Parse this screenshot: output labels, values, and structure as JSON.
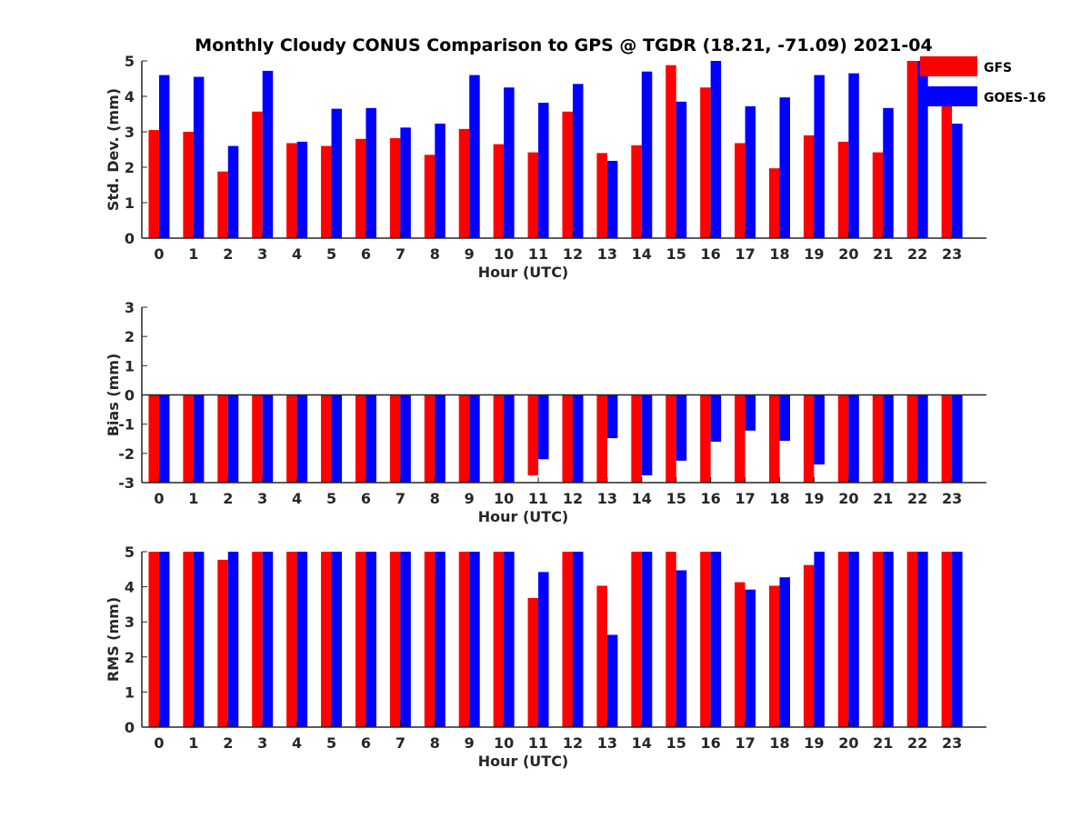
{
  "figure": {
    "title": "Monthly Cloudy CONUS Comparison to GPS @ TGDR (18.21, -71.09) 2021-04"
  },
  "legend": {
    "placement": "top-right",
    "items": [
      {
        "name": "GFS",
        "color": "#ff0000"
      },
      {
        "name": "GOES-16",
        "color": "#0000ff"
      }
    ]
  },
  "chart_data": [
    {
      "type": "bar",
      "ylabel": "Std. Dev. (mm)",
      "xlabel": "Hour (UTC)",
      "categories": [
        "0",
        "1",
        "2",
        "3",
        "4",
        "5",
        "6",
        "7",
        "8",
        "9",
        "10",
        "11",
        "12",
        "13",
        "14",
        "15",
        "16",
        "17",
        "18",
        "19",
        "20",
        "21",
        "22",
        "23"
      ],
      "ylim": [
        0,
        5
      ],
      "yticks": [
        "0",
        "1",
        "2",
        "3",
        "4",
        "5"
      ],
      "series": [
        {
          "name": "GFS",
          "color": "#ff0000",
          "values": [
            3.05,
            3.0,
            1.88,
            3.57,
            2.68,
            2.6,
            2.8,
            2.82,
            2.35,
            3.08,
            2.65,
            2.42,
            3.57,
            2.4,
            2.62,
            4.88,
            4.25,
            2.68,
            1.97,
            2.9,
            2.72,
            2.42,
            5.0,
            4.0
          ]
        },
        {
          "name": "GOES-16",
          "color": "#0000ff",
          "values": [
            4.6,
            4.55,
            2.6,
            4.72,
            2.72,
            3.65,
            3.67,
            3.12,
            3.23,
            4.6,
            4.25,
            3.82,
            4.35,
            2.18,
            4.7,
            3.85,
            5.0,
            3.72,
            3.97,
            4.6,
            4.65,
            3.67,
            5.0,
            3.23
          ]
        }
      ]
    },
    {
      "type": "bar",
      "ylabel": "Bias (mm)",
      "xlabel": "Hour (UTC)",
      "categories": [
        "0",
        "1",
        "2",
        "3",
        "4",
        "5",
        "6",
        "7",
        "8",
        "9",
        "10",
        "11",
        "12",
        "13",
        "14",
        "15",
        "16",
        "17",
        "18",
        "19",
        "20",
        "21",
        "22",
        "23"
      ],
      "ylim": [
        -3,
        3
      ],
      "yticks": [
        "-3",
        "-2",
        "-1",
        "0",
        "1",
        "2",
        "3"
      ],
      "series": [
        {
          "name": "GFS",
          "color": "#ff0000",
          "values": [
            -3,
            -3,
            -3,
            -3,
            -3,
            -3,
            -3,
            -3,
            -3,
            -3,
            -3,
            -2.75,
            -3,
            -3,
            -3,
            -3,
            -3,
            -3,
            -3,
            -3,
            -3,
            -3,
            -3,
            -3
          ]
        },
        {
          "name": "GOES-16",
          "color": "#0000ff",
          "values": [
            -3,
            -3,
            -3,
            -3,
            -3,
            -3,
            -3,
            -3,
            -3,
            -3,
            -3,
            -2.2,
            -3,
            -1.48,
            -2.75,
            -2.25,
            -1.6,
            -1.22,
            -1.57,
            -2.38,
            -3,
            -3,
            -3,
            -3
          ]
        }
      ]
    },
    {
      "type": "bar",
      "ylabel": "RMS (mm)",
      "xlabel": "Hour (UTC)",
      "categories": [
        "0",
        "1",
        "2",
        "3",
        "4",
        "5",
        "6",
        "7",
        "8",
        "9",
        "10",
        "11",
        "12",
        "13",
        "14",
        "15",
        "16",
        "17",
        "18",
        "19",
        "20",
        "21",
        "22",
        "23"
      ],
      "ylim": [
        0,
        5
      ],
      "yticks": [
        "0",
        "1",
        "2",
        "3",
        "4",
        "5"
      ],
      "series": [
        {
          "name": "GFS",
          "color": "#ff0000",
          "values": [
            5,
            5,
            4.77,
            5,
            5,
            5,
            5,
            5,
            5,
            5,
            5,
            3.68,
            5,
            4.03,
            5,
            5,
            5,
            4.13,
            4.03,
            4.62,
            5,
            5,
            5,
            5
          ]
        },
        {
          "name": "GOES-16",
          "color": "#0000ff",
          "values": [
            5,
            5,
            5,
            5,
            5,
            5,
            5,
            5,
            5,
            5,
            5,
            4.42,
            5,
            2.63,
            5,
            4.47,
            5,
            3.92,
            4.27,
            5,
            5,
            5,
            5,
            5
          ]
        }
      ]
    }
  ]
}
